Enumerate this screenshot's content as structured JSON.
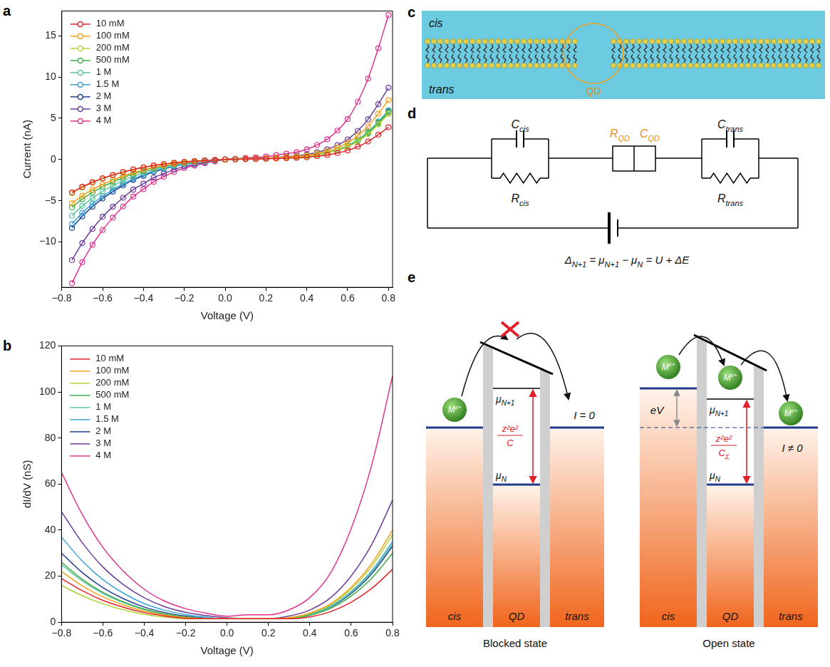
{
  "chart_data": [
    {
      "panel_label": "a",
      "type": "line",
      "x_label": "Voltage (V)",
      "y_label": "Current (nA)",
      "marker": "circle",
      "line_style": "solid",
      "legend": "top-left",
      "grid": false,
      "x": [
        -0.75,
        -0.7,
        -0.65,
        -0.6,
        -0.55,
        -0.5,
        -0.45,
        -0.4,
        -0.35,
        -0.3,
        -0.25,
        -0.2,
        -0.15,
        -0.1,
        -0.05,
        0,
        0.05,
        0.1,
        0.15,
        0.2,
        0.25,
        0.3,
        0.35,
        0.4,
        0.45,
        0.5,
        0.55,
        0.6,
        0.65,
        0.7,
        0.75,
        0.8
      ],
      "xlim": [
        -0.8,
        0.82
      ],
      "xticks": [
        {
          "value": -0.8,
          "label": "−0.8"
        },
        {
          "value": -0.6,
          "label": "−0.6"
        },
        {
          "value": -0.4,
          "label": "−0.4"
        },
        {
          "value": -0.2,
          "label": "−0.2"
        },
        {
          "value": 0,
          "label": "0.0"
        },
        0.2,
        0.4,
        0.6,
        0.8
      ],
      "ylim": [
        -15.5,
        18
      ],
      "yticks": [
        {
          "value": -10,
          "label": "−10"
        },
        {
          "value": -5,
          "label": "−5"
        },
        0,
        5,
        10,
        15
      ],
      "series": [
        {
          "name": "10 mM",
          "color": "#e3232a",
          "values": [
            -4.0,
            -3.32,
            -2.76,
            -2.28,
            -1.88,
            -1.52,
            -1.2,
            -0.96,
            -0.72,
            -0.56,
            -0.4,
            -0.28,
            -0.2,
            -0.12,
            -0.06,
            0,
            0.02,
            0.04,
            0.06,
            0.08,
            0.12,
            0.16,
            0.2,
            0.27,
            0.39,
            0.55,
            0.78,
            1.09,
            1.56,
            2.18,
            3.0,
            3.9
          ]
        },
        {
          "name": "100 mM",
          "color": "#f5a01a",
          "values": [
            -5.3,
            -4.4,
            -3.66,
            -3.02,
            -2.49,
            -2.01,
            -1.59,
            -1.27,
            -0.95,
            -0.74,
            -0.53,
            -0.37,
            -0.27,
            -0.16,
            -0.08,
            0,
            0.04,
            0.07,
            0.11,
            0.14,
            0.22,
            0.29,
            0.36,
            0.5,
            0.72,
            1.01,
            1.44,
            2.02,
            2.88,
            4.03,
            5.54,
            7.2
          ]
        },
        {
          "name": "200 mM",
          "color": "#b3d236",
          "values": [
            -4.1,
            -3.4,
            -2.83,
            -2.34,
            -1.93,
            -1.56,
            -1.23,
            -0.98,
            -0.74,
            -0.57,
            -0.41,
            -0.29,
            -0.21,
            -0.12,
            -0.06,
            0,
            0.03,
            0.06,
            0.08,
            0.11,
            0.17,
            0.22,
            0.28,
            0.39,
            0.55,
            0.77,
            1.1,
            1.54,
            2.2,
            3.08,
            4.24,
            5.5
          ]
        },
        {
          "name": "500 mM",
          "color": "#3fae49",
          "values": [
            -5.8,
            -4.81,
            -4.0,
            -3.31,
            -2.73,
            -2.2,
            -1.74,
            -1.39,
            -1.04,
            -0.81,
            -0.58,
            -0.41,
            -0.29,
            -0.17,
            -0.09,
            0,
            0.03,
            0.06,
            0.09,
            0.11,
            0.17,
            0.23,
            0.29,
            0.4,
            0.57,
            0.8,
            1.14,
            1.6,
            2.28,
            3.19,
            4.39,
            5.7
          ]
        },
        {
          "name": "1 M",
          "color": "#5cc5a0",
          "values": [
            -6.8,
            -5.64,
            -4.69,
            -3.88,
            -3.2,
            -2.58,
            -2.04,
            -1.63,
            -1.22,
            -0.95,
            -0.68,
            -0.48,
            -0.34,
            -0.2,
            -0.1,
            0,
            0.03,
            0.06,
            0.09,
            0.12,
            0.18,
            0.24,
            0.3,
            0.42,
            0.6,
            0.84,
            1.2,
            1.68,
            2.4,
            3.36,
            4.62,
            6.0
          ]
        },
        {
          "name": "1.5 M",
          "color": "#3aa3d6",
          "values": [
            -7.8,
            -6.47,
            -5.38,
            -4.45,
            -3.67,
            -2.96,
            -2.34,
            -1.87,
            -1.4,
            -1.09,
            -0.78,
            -0.55,
            -0.39,
            -0.23,
            -0.12,
            0,
            0.03,
            0.06,
            0.09,
            0.12,
            0.18,
            0.24,
            0.3,
            0.41,
            0.59,
            0.83,
            1.18,
            1.65,
            2.36,
            3.3,
            4.54,
            5.9
          ]
        },
        {
          "name": "2 M",
          "color": "#1d3f8f",
          "values": [
            -8.3,
            -6.89,
            -5.73,
            -4.73,
            -3.9,
            -3.15,
            -2.49,
            -1.99,
            -1.49,
            -1.16,
            -0.83,
            -0.58,
            -0.42,
            -0.25,
            -0.12,
            0,
            0.03,
            0.06,
            0.09,
            0.12,
            0.17,
            0.23,
            0.29,
            0.41,
            0.58,
            0.81,
            1.16,
            1.62,
            2.32,
            3.25,
            4.47,
            5.8
          ]
        },
        {
          "name": "3 M",
          "color": "#6b3d9a",
          "values": [
            -12.2,
            -10.13,
            -8.42,
            -6.95,
            -5.73,
            -4.64,
            -3.66,
            -2.93,
            -2.2,
            -1.71,
            -1.22,
            -0.85,
            -0.61,
            -0.37,
            -0.18,
            0,
            0.04,
            0.09,
            0.13,
            0.17,
            0.26,
            0.35,
            0.44,
            0.61,
            0.87,
            1.22,
            1.74,
            2.44,
            3.48,
            4.87,
            6.7,
            8.7
          ]
        },
        {
          "name": "4 M",
          "color": "#e0338f",
          "values": [
            -15,
            -12.45,
            -10.35,
            -8.55,
            -7.05,
            -5.7,
            -4.5,
            -3.6,
            -2.7,
            -2.1,
            -1.5,
            -1.05,
            -0.75,
            -0.45,
            -0.23,
            0,
            0.09,
            0.18,
            0.26,
            0.35,
            0.53,
            0.7,
            0.88,
            1.23,
            1.75,
            2.45,
            3.5,
            4.9,
            7.0,
            9.8,
            13.48,
            17.5
          ]
        }
      ]
    },
    {
      "panel_label": "b",
      "type": "line",
      "x_label": "Voltage (V)",
      "y_label": "dI/dV (nS)",
      "line_style": "solid",
      "legend": "top-left",
      "grid": false,
      "x": [
        -0.8,
        -0.7,
        -0.6,
        -0.5,
        -0.4,
        -0.3,
        -0.2,
        -0.1,
        0,
        0.1,
        0.2,
        0.3,
        0.4,
        0.5,
        0.6,
        0.7,
        0.8
      ],
      "xlim": [
        -0.8,
        0.8
      ],
      "xticks": [
        {
          "value": -0.8,
          "label": "−0.8"
        },
        {
          "value": -0.6,
          "label": "−0.6"
        },
        {
          "value": -0.4,
          "label": "−0.4"
        },
        {
          "value": -0.2,
          "label": "−0.2"
        },
        {
          "value": 0,
          "label": "0.0"
        },
        0.2,
        0.4,
        0.6,
        0.8
      ],
      "ylim": [
        0,
        120
      ],
      "yticks": [
        0,
        20,
        40,
        60,
        80,
        100,
        120
      ],
      "series": [
        {
          "name": "10 mM",
          "color": "#e3232a",
          "values": [
            19,
            13.7,
            9.5,
            6.5,
            4.2,
            2.7,
            1.7,
            1.5,
            1.5,
            1.5,
            1.5,
            1.5,
            2.3,
            4.6,
            8.7,
            14.7,
            23
          ]
        },
        {
          "name": "100 mM",
          "color": "#f5a01a",
          "values": [
            22,
            15.8,
            11,
            7.5,
            4.8,
            3.1,
            2,
            1.5,
            1.5,
            1.5,
            1.5,
            2,
            4,
            8,
            15.2,
            25.6,
            40
          ]
        },
        {
          "name": "200 mM",
          "color": "#b3d236",
          "values": [
            16,
            11.5,
            8,
            5.4,
            3.5,
            2.2,
            1.5,
            1.5,
            1.5,
            1.5,
            1.5,
            1.9,
            3.8,
            7.6,
            14.4,
            24.3,
            38
          ]
        },
        {
          "name": "500 mM",
          "color": "#3fae49",
          "values": [
            26,
            18.7,
            13,
            8.8,
            5.7,
            3.6,
            2.3,
            1.6,
            1.5,
            1.5,
            1.5,
            1.5,
            3,
            6,
            11.4,
            19.2,
            30
          ]
        },
        {
          "name": "1 M",
          "color": "#5cc5a0",
          "values": [
            25,
            18,
            12.5,
            8.5,
            5.5,
            3.5,
            2.3,
            1.5,
            1.5,
            1.5,
            1.5,
            1.7,
            3.4,
            6.8,
            12.9,
            21.8,
            34
          ]
        },
        {
          "name": "1.5 M",
          "color": "#3aa3d6",
          "values": [
            37,
            26.6,
            18.5,
            12.6,
            8.1,
            5.2,
            3.3,
            2.2,
            1.5,
            1.5,
            1.5,
            1.8,
            3.5,
            7,
            13.3,
            22.4,
            35
          ]
        },
        {
          "name": "2 M",
          "color": "#1d3f8f",
          "values": [
            30,
            21.6,
            15,
            10.2,
            6.6,
            4.2,
            2.7,
            1.8,
            1.5,
            1.5,
            1.5,
            1.7,
            3.3,
            6.6,
            12.5,
            21.1,
            33
          ]
        },
        {
          "name": "3 M",
          "color": "#6b3d9a",
          "values": [
            48,
            34.6,
            24,
            16.3,
            10.6,
            6.7,
            4.3,
            2.9,
            1.9,
            1.6,
            1.6,
            2.7,
            5.3,
            10.6,
            20.1,
            33.9,
            53
          ]
        },
        {
          "name": "4 M",
          "color": "#e0338f",
          "values": [
            65,
            46.8,
            32.5,
            22.1,
            14.3,
            9.1,
            5.9,
            3.9,
            2.6,
            3.2,
            3.2,
            5.4,
            10.7,
            21.4,
            40.7,
            68.5,
            107
          ]
        }
      ]
    }
  ],
  "diagrams": {
    "c": {
      "panel_label": "c",
      "cis": "cis",
      "trans": "trans",
      "qd": "QD"
    },
    "d": {
      "panel_label": "d",
      "c_cis": {
        "t": "C",
        "s": "cis"
      },
      "r_cis": {
        "t": "R",
        "s": "cis"
      },
      "r_qd": {
        "t": "R",
        "s": "QD"
      },
      "c_qd": {
        "t": "C",
        "s": "QD"
      },
      "c_trans": {
        "t": "C",
        "s": "trans"
      },
      "r_trans": {
        "t": "R",
        "s": "trans"
      }
    },
    "e": {
      "panel_label": "e",
      "formula": [
        {
          "t": "Δ",
          "s": "N+1"
        },
        {
          "t": " = μ",
          "s": "N+1"
        },
        {
          "t": " − μ",
          "s": "N"
        },
        {
          "t": " = U + ΔE"
        }
      ],
      "blocked": {
        "state": "Blocked state",
        "current": "I = 0",
        "ion": {
          "t": "M",
          "sup": "z+"
        },
        "mu_upper": {
          "t": "μ",
          "s": "N+1"
        },
        "mu_lower": {
          "t": "μ",
          "s": "N"
        },
        "gap_numerator": "z²e²",
        "gap_denominator": {
          "t": "C"
        },
        "regions": [
          "cis",
          "QD",
          "trans"
        ]
      },
      "open": {
        "state": "Open state",
        "current": "I ≠ 0",
        "bias": "eV",
        "ion": {
          "t": "M",
          "sup": "z+"
        },
        "mu_upper": {
          "t": "μ",
          "s": "N+1"
        },
        "mu_lower": {
          "t": "μ",
          "s": "N"
        },
        "gap_numerator": "z²e²",
        "gap_denominator": {
          "t": "C",
          "s": "Σ"
        },
        "regions": [
          "cis",
          "QD",
          "trans"
        ]
      }
    }
  }
}
